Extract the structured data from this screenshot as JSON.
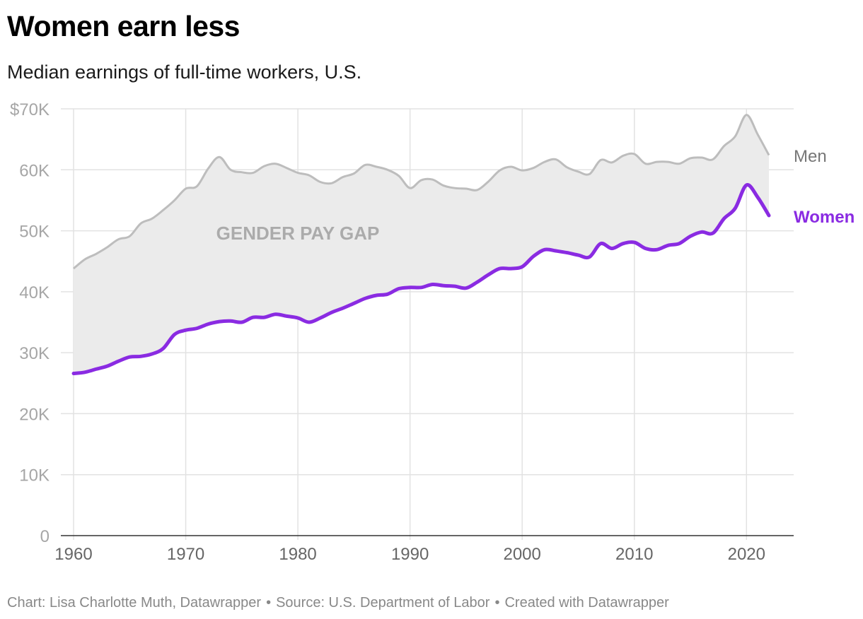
{
  "title": "Women earn less",
  "subtitle": "Median earnings of full-time workers, U.S.",
  "footer": {
    "chart_credit": "Chart: Lisa Charlotte Muth, Datawrapper",
    "source": "Source: U.S. Department of Labor",
    "tool": "Created with Datawrapper",
    "separator": "•"
  },
  "colors": {
    "men": "#bdbdbd",
    "men_label": "#777777",
    "women": "#8a2be2",
    "gap_fill": "#ebebeb",
    "gap_label": "#ababab",
    "grid": "#e2e2e2",
    "tick": "#a6a6a6",
    "axis": "#333333"
  },
  "chart_data": {
    "type": "area",
    "title": "Women earn less",
    "subtitle": "Median earnings of full-time workers, U.S.",
    "xlabel": "",
    "ylabel": "",
    "xlim": [
      1960,
      2022
    ],
    "ylim": [
      0,
      70000
    ],
    "grid": true,
    "x_ticks": [
      1960,
      1970,
      1980,
      1990,
      2000,
      2010,
      2020
    ],
    "x_tick_labels": [
      "1960",
      "1970",
      "1980",
      "1990",
      "2000",
      "2010",
      "2020"
    ],
    "y_ticks": [
      0,
      10000,
      20000,
      30000,
      40000,
      50000,
      60000,
      70000
    ],
    "y_tick_labels": [
      "0",
      "10K",
      "20K",
      "30K",
      "40K",
      "50K",
      "60K",
      "$70K"
    ],
    "annotation": "GENDER PAY GAP",
    "x": [
      1960,
      1961,
      1962,
      1963,
      1964,
      1965,
      1966,
      1967,
      1968,
      1969,
      1970,
      1971,
      1972,
      1973,
      1974,
      1975,
      1976,
      1977,
      1978,
      1979,
      1980,
      1981,
      1982,
      1983,
      1984,
      1985,
      1986,
      1987,
      1988,
      1989,
      1990,
      1991,
      1992,
      1993,
      1994,
      1995,
      1996,
      1997,
      1998,
      1999,
      2000,
      2001,
      2002,
      2003,
      2004,
      2005,
      2006,
      2007,
      2008,
      2009,
      2010,
      2011,
      2012,
      2013,
      2014,
      2015,
      2016,
      2017,
      2018,
      2019,
      2020,
      2021,
      2022
    ],
    "series": [
      {
        "name": "Men",
        "values": [
          43800,
          45300,
          46200,
          47300,
          48600,
          49100,
          51200,
          52000,
          53400,
          55000,
          56900,
          57300,
          60200,
          62100,
          60000,
          59600,
          59500,
          60600,
          61000,
          60300,
          59500,
          59100,
          58000,
          57800,
          58800,
          59400,
          60800,
          60500,
          60000,
          59000,
          57000,
          58300,
          58400,
          57400,
          57000,
          56900,
          56700,
          58100,
          59900,
          60500,
          59900,
          60300,
          61300,
          61700,
          60400,
          59700,
          59300,
          61600,
          61200,
          62300,
          62600,
          61000,
          61300,
          61300,
          61000,
          61900,
          62000,
          61700,
          63900,
          65500,
          69000,
          65800,
          62400
        ]
      },
      {
        "name": "Women",
        "values": [
          26600,
          26800,
          27300,
          27800,
          28600,
          29300,
          29400,
          29800,
          30700,
          33000,
          33700,
          34000,
          34700,
          35100,
          35200,
          35000,
          35800,
          35800,
          36300,
          36000,
          35700,
          35000,
          35700,
          36600,
          37300,
          38100,
          38900,
          39400,
          39600,
          40500,
          40700,
          40700,
          41200,
          41000,
          40900,
          40600,
          41600,
          42800,
          43800,
          43800,
          44100,
          45800,
          46900,
          46700,
          46400,
          46000,
          45700,
          47900,
          47100,
          47900,
          48100,
          47100,
          46900,
          47600,
          47900,
          49100,
          49800,
          49600,
          52000,
          53700,
          57500,
          55500,
          52500
        ]
      }
    ]
  }
}
